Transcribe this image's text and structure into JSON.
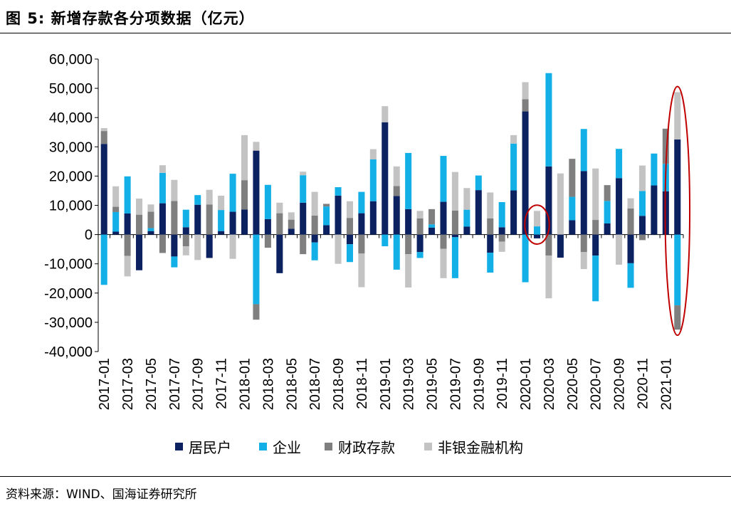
{
  "figure": {
    "title": "图 5:  新增存款各分项数据（亿元）",
    "source": "资料来源：WIND、国海证券研究所"
  },
  "colors": {
    "household": "#0b2160",
    "enterprise": "#12b0e6",
    "fiscal": "#7f7f7f",
    "nonbank": "#c3c3c3",
    "highlight": "#c00000"
  },
  "chart_data": {
    "type": "bar",
    "stacked": true,
    "title": "",
    "xlabel": "",
    "ylabel": "",
    "ylim": [
      -40000,
      60000
    ],
    "yticks": [
      60000,
      50000,
      40000,
      30000,
      20000,
      10000,
      0,
      -10000,
      -20000,
      -30000,
      -40000
    ],
    "ytick_labels": [
      "60,000",
      "50,000",
      "40,000",
      "30,000",
      "20,000",
      "10,000",
      "0",
      "-10,000",
      "-20,000",
      "-30,000",
      "-40,000"
    ],
    "legend_position": "bottom",
    "categories": [
      "2017-01",
      "2017-02",
      "2017-03",
      "2017-04",
      "2017-05",
      "2017-06",
      "2017-07",
      "2017-08",
      "2017-09",
      "2017-10",
      "2017-11",
      "2017-12",
      "2018-01",
      "2018-02",
      "2018-03",
      "2018-04",
      "2018-05",
      "2018-06",
      "2018-07",
      "2018-08",
      "2018-09",
      "2018-10",
      "2018-11",
      "2018-12",
      "2019-01",
      "2019-02",
      "2019-03",
      "2019-04",
      "2019-05",
      "2019-06",
      "2019-07",
      "2019-08",
      "2019-09",
      "2019-10",
      "2019-11",
      "2019-12",
      "2020-01",
      "2020-02",
      "2020-03",
      "2020-04",
      "2020-05",
      "2020-06",
      "2020-07",
      "2020-08",
      "2020-09",
      "2020-10",
      "2020-11",
      "2020-12",
      "2021-01",
      "2021-02"
    ],
    "tick_labels": [
      "2017-01",
      "2017-03",
      "2017-05",
      "2017-07",
      "2017-09",
      "2017-11",
      "2018-01",
      "2018-03",
      "2018-05",
      "2018-07",
      "2018-09",
      "2018-11",
      "2019-01",
      "2019-03",
      "2019-05",
      "2019-07",
      "2019-09",
      "2019-11",
      "2020-01",
      "2020-03",
      "2020-05",
      "2020-07",
      "2020-09",
      "2020-11",
      "2021-01"
    ],
    "series": [
      {
        "name": "居民户",
        "values": [
          31000,
          1000,
          7200,
          -12200,
          1200,
          10700,
          -7500,
          2500,
          10200,
          -8000,
          1200,
          7800,
          8600,
          28700,
          5300,
          -13200,
          2000,
          10900,
          -2700,
          3200,
          13300,
          -3300,
          7300,
          11400,
          38400,
          13200,
          8700,
          -6000,
          2400,
          11200,
          -900,
          2700,
          15200,
          -6200,
          2500,
          15100,
          42100,
          -1300,
          23300,
          -7900,
          4900,
          21700,
          -7200,
          3800,
          19300,
          -9800,
          6400,
          16800,
          14800,
          32500
        ]
      },
      {
        "name": "企业",
        "values": [
          -17200,
          6700,
          12700,
          0,
          1000,
          10400,
          -3700,
          6000,
          3300,
          0,
          7200,
          13000,
          0,
          -23800,
          11700,
          0,
          0,
          9400,
          -6100,
          6400,
          2900,
          -6100,
          7300,
          14300,
          -4000,
          -12000,
          19200,
          -2000,
          1100,
          15700,
          -14000,
          5800,
          5000,
          -6800,
          8600,
          16000,
          -16300,
          2800,
          31900,
          0,
          8000,
          14400,
          -15600,
          7700,
          10000,
          -8400,
          8500,
          10900,
          9400,
          -24200
        ]
      },
      {
        "name": "财政存款",
        "values": [
          4400,
          1800,
          -7300,
          6800,
          5600,
          -6300,
          11500,
          -4000,
          0,
          10300,
          0,
          0,
          10000,
          -5300,
          -4500,
          7300,
          3100,
          -6700,
          6500,
          900,
          0,
          5700,
          -6500,
          0,
          0,
          3400,
          -6700,
          5500,
          5200,
          -4900,
          8200,
          0,
          0,
          5500,
          -2400,
          0,
          4200,
          0,
          -7200,
          0,
          13000,
          -6000,
          5000,
          5400,
          0,
          8900,
          -1900,
          0,
          12000,
          -8300
        ]
      },
      {
        "name": "非银金融机构",
        "values": [
          1000,
          7000,
          -7000,
          5500,
          2500,
          2600,
          7200,
          -3100,
          -8700,
          5000,
          4900,
          -8300,
          15400,
          3000,
          0,
          3600,
          2500,
          1200,
          8100,
          0,
          -10000,
          5700,
          -11500,
          3500,
          5500,
          6700,
          -11400,
          2600,
          0,
          -10000,
          13200,
          7400,
          0,
          8900,
          -3500,
          2900,
          5800,
          5300,
          -14600,
          20900,
          0,
          -5800,
          17600,
          0,
          -10300,
          3500,
          8700,
          0,
          0,
          16200
        ]
      }
    ],
    "annotations": [
      {
        "type": "ellipse",
        "category": "2020-02",
        "color": "#c00000"
      },
      {
        "type": "ellipse",
        "category": "2021-02",
        "color": "#c00000"
      }
    ]
  }
}
